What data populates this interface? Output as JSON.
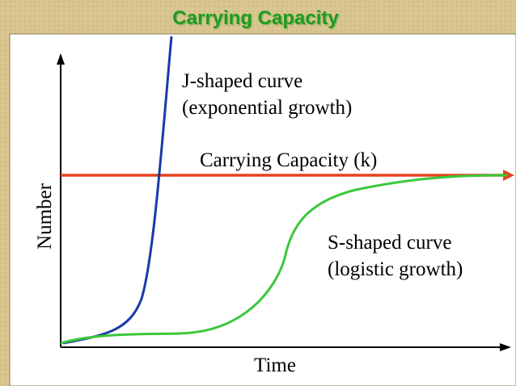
{
  "title": "Carrying Capacity",
  "labels": {
    "j_curve": "J-shaped curve",
    "j_desc": "(exponential growth)",
    "capacity": "Carrying Capacity (k)",
    "s_curve": "S-shaped curve",
    "s_desc": "(logistic growth)"
  },
  "axes": {
    "y": "Number",
    "x": "Time"
  }
}
